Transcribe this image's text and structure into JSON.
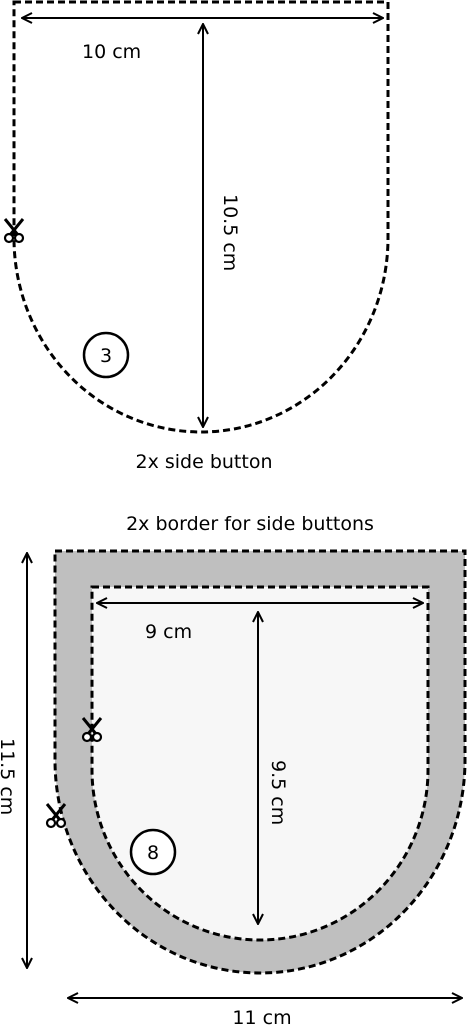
{
  "top_piece": {
    "width_label": "10 cm",
    "height_label": "10.5 cm",
    "piece_number": "3",
    "caption": "2x side button"
  },
  "bottom_piece": {
    "title": "2x  border for side buttons",
    "inner_width_label": "9 cm",
    "inner_height_label": "9.5 cm",
    "piece_number": "8",
    "outer_height_label": "11.5 cm",
    "outer_width_label": "11 cm",
    "border_color": "#bfbfbf",
    "inner_fill_color": "#f7f7f7"
  },
  "icons": [
    "scissors-icon",
    "scissors-icon",
    "scissors-icon"
  ]
}
